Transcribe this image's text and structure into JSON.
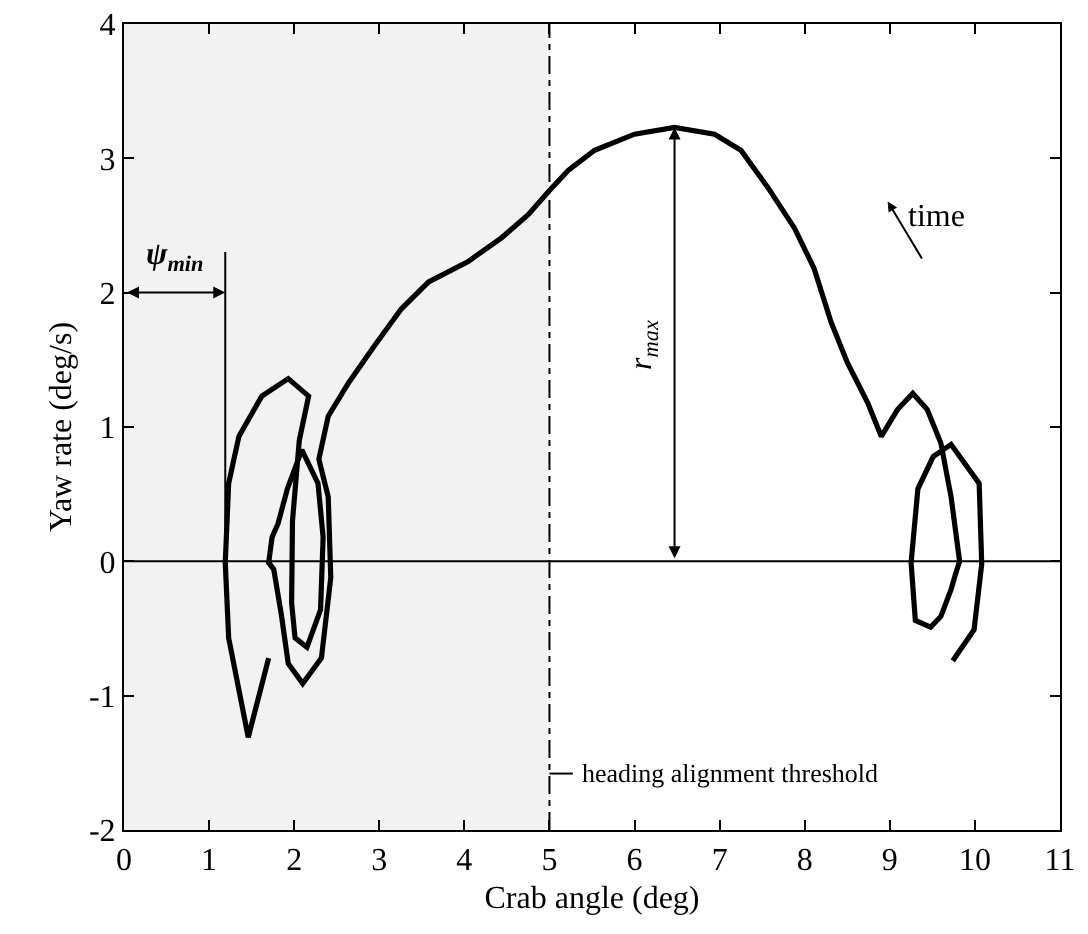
{
  "chart_data": {
    "type": "line",
    "xlabel": "Crab angle (deg)",
    "ylabel": "Yaw rate (deg/s)",
    "xlim": [
      0,
      11
    ],
    "xticks": [
      0,
      1,
      2,
      3,
      4,
      5,
      6,
      7,
      8,
      9,
      10,
      11
    ],
    "ylim": [
      -2,
      4
    ],
    "yticks": [
      -2,
      -1,
      0,
      1,
      2,
      3,
      4
    ],
    "grid": false,
    "marker": "none",
    "line_style": "solid",
    "series": [
      {
        "color": "#000000",
        "x": [
          9.74,
          9.99,
          10.08,
          10.05,
          9.72,
          9.51,
          9.33,
          9.25,
          9.3,
          9.48,
          9.6,
          9.72,
          9.77,
          9.82,
          9.72,
          9.6,
          9.44,
          9.27,
          9.09,
          8.9,
          8.74,
          8.5,
          8.31,
          8.11,
          7.88,
          7.57,
          7.25,
          6.94,
          6.47,
          6.0,
          5.53,
          5.22,
          5.0,
          4.75,
          4.44,
          4.04,
          3.58,
          3.26,
          2.95,
          2.64,
          2.4,
          2.29,
          2.4,
          2.43,
          2.32,
          2.1,
          1.93,
          1.85,
          1.76,
          1.7,
          1.74,
          1.81,
          1.92,
          2.09,
          2.28,
          2.34,
          2.31,
          2.15,
          2.01,
          1.97,
          1.98,
          2.06,
          2.17,
          1.93,
          1.62,
          1.35,
          1.23,
          1.19,
          1.23,
          1.46,
          1.7
        ],
        "values": [
          -0.74,
          -0.51,
          -0.02,
          0.58,
          0.87,
          0.78,
          0.54,
          -0.01,
          -0.44,
          -0.49,
          -0.41,
          -0.21,
          -0.1,
          0.0,
          0.48,
          0.88,
          1.13,
          1.25,
          1.13,
          0.93,
          1.18,
          1.48,
          1.78,
          2.18,
          2.48,
          2.78,
          3.06,
          3.18,
          3.23,
          3.18,
          3.06,
          2.91,
          2.76,
          2.58,
          2.41,
          2.23,
          2.08,
          1.88,
          1.61,
          1.33,
          1.08,
          0.76,
          0.48,
          -0.12,
          -0.72,
          -0.91,
          -0.76,
          -0.4,
          -0.06,
          -0.01,
          0.18,
          0.28,
          0.54,
          0.83,
          0.58,
          0.18,
          -0.36,
          -0.64,
          -0.57,
          -0.31,
          0.3,
          0.9,
          1.23,
          1.36,
          1.23,
          0.93,
          0.58,
          -0.01,
          -0.57,
          -1.31,
          -0.72
        ]
      }
    ],
    "ref_lines": [
      {
        "axis": "x",
        "value": 5,
        "label": "heading alignment threshold",
        "line_style": "dashed",
        "color": "#000000"
      },
      {
        "axis": "y",
        "value": 0,
        "color": "#000000"
      }
    ],
    "bands": [
      {
        "axis": "x",
        "from": 0,
        "to": 5,
        "color": "#f2f2f2"
      }
    ],
    "annotations": [
      {
        "text": "ψ$_{min}$",
        "x": 1.19,
        "y": -0.01
      },
      "r$_{max}$",
      "time"
    ]
  }
}
